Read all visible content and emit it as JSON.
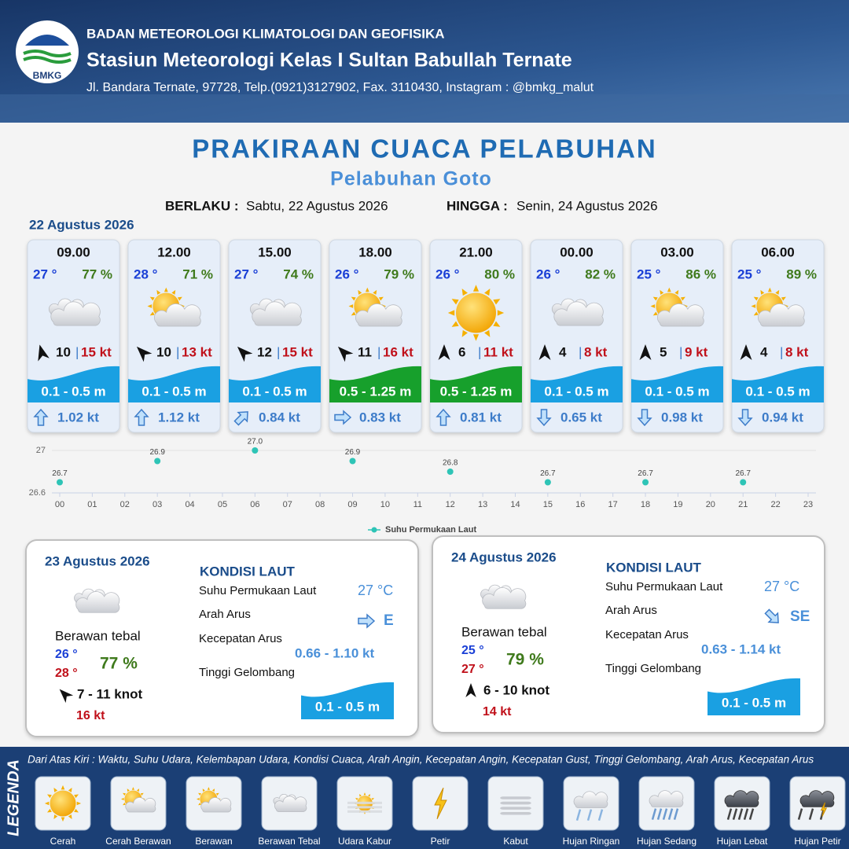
{
  "header": {
    "logo": "BMKG",
    "organization": "BADAN METEOROLOGI KLIMATOLOGI DAN GEOFISIKA",
    "station": "Stasiun Meteorologi Kelas I Sultan Babullah Ternate",
    "address": "Jl. Bandara Ternate, 97728, Telp.(0921)3127902, Fax. 3110430, Instagram : @bmkg_malut"
  },
  "title": "PRAKIRAAN CUACA PELABUHAN",
  "subtitle": "Pelabuhan Goto",
  "validity": {
    "from_label": "BERLAKU :",
    "from": "Sabtu, 22 Agustus 2026",
    "to_label": "HINGGA :",
    "to": "Senin, 24 Agustus 2026"
  },
  "day1": {
    "date": "22 Agustus 2026",
    "cards": [
      {
        "time": "09.00",
        "temp": "27 °",
        "humidity": "77 %",
        "wind_speed": "10",
        "gust": "15 kt",
        "wave": "0.1 - 0.5 m",
        "current_speed": "1.02 kt"
      },
      {
        "time": "12.00",
        "temp": "28 °",
        "humidity": "71 %",
        "wind_speed": "10",
        "gust": "13 kt",
        "wave": "0.1 - 0.5 m",
        "current_speed": "1.12 kt"
      },
      {
        "time": "15.00",
        "temp": "27 °",
        "humidity": "74 %",
        "wind_speed": "12",
        "gust": "15 kt",
        "wave": "0.1 - 0.5 m",
        "current_speed": "0.84 kt"
      },
      {
        "time": "18.00",
        "temp": "26 °",
        "humidity": "79 %",
        "wind_speed": "11",
        "gust": "16 kt",
        "wave": "0.5 - 1.25 m",
        "current_speed": "0.83 kt"
      },
      {
        "time": "21.00",
        "temp": "26 °",
        "humidity": "80 %",
        "wind_speed": "6",
        "gust": "11 kt",
        "wave": "0.5 - 1.25 m",
        "current_speed": "0.81 kt"
      },
      {
        "time": "00.00",
        "temp": "26 °",
        "humidity": "82 %",
        "wind_speed": "4",
        "gust": "8 kt",
        "wave": "0.1 - 0.5 m",
        "current_speed": "0.65 kt"
      },
      {
        "time": "03.00",
        "temp": "25 °",
        "humidity": "86 %",
        "wind_speed": "5",
        "gust": "9 kt",
        "wave": "0.1 - 0.5 m",
        "current_speed": "0.98 kt"
      },
      {
        "time": "06.00",
        "temp": "25 °",
        "humidity": "89 %",
        "wind_speed": "4",
        "gust": "8 kt",
        "wave": "0.1 - 0.5 m",
        "current_speed": "0.94 kt"
      }
    ]
  },
  "chart_data": {
    "type": "scatter",
    "series": [
      {
        "name": "Suhu Permukaan Laut",
        "color": "#2ec4b6",
        "x": [
          0,
          3,
          6,
          9,
          12,
          15,
          18,
          21
        ],
        "values": [
          26.7,
          26.9,
          27.0,
          26.9,
          26.8,
          26.7,
          26.7,
          26.7
        ],
        "value_labels": [
          "26.7",
          "26.9",
          "27.0",
          "26.9",
          "26.8",
          "26.7",
          "26.7",
          "26.7"
        ]
      }
    ],
    "xlim": [
      0,
      23
    ],
    "xticks": [
      {
        "value": 0,
        "label": "00"
      },
      {
        "value": 1,
        "label": "01"
      },
      {
        "value": 2,
        "label": "02"
      },
      {
        "value": 3,
        "label": "03"
      },
      {
        "value": 4,
        "label": "04"
      },
      {
        "value": 5,
        "label": "05"
      },
      {
        "value": 6,
        "label": "06"
      },
      {
        "value": 7,
        "label": "07"
      },
      {
        "value": 8,
        "label": "08"
      },
      {
        "value": 9,
        "label": "09"
      },
      10,
      11,
      12,
      13,
      14,
      15,
      16,
      17,
      18,
      19,
      20,
      21,
      22,
      23
    ],
    "ylim": [
      26.6,
      27.0
    ],
    "yticks": [
      26.6,
      27
    ],
    "grid": true
  },
  "days": [
    {
      "date": "23 Agustus 2026",
      "weather": "Berawan tebal",
      "temp_min": "26 °",
      "temp_max": "28 °",
      "humidity": "77 %",
      "wind": "7  - 11 knot",
      "gust": "16 kt",
      "sea": {
        "heading": "KONDISI LAUT",
        "sst_label": "Suhu Permukaan Laut",
        "sst": "27 °C",
        "current_dir_label": "Arah Arus",
        "current_dir": "E",
        "current_speed_label": "Kecepatan Arus",
        "current_speed": "0.66  - 1.10 kt",
        "wave_label": "Tinggi Gelombang",
        "wave": "0.1 - 0.5 m"
      }
    },
    {
      "date": "24 Agustus 2026",
      "weather": "Berawan tebal",
      "temp_min": "25 °",
      "temp_max": "27 °",
      "humidity": "79 %",
      "wind": "6  - 10 knot",
      "gust": "14 kt",
      "sea": {
        "heading": "KONDISI LAUT",
        "sst_label": "Suhu Permukaan Laut",
        "sst": "27 °C",
        "current_dir_label": "Arah Arus",
        "current_dir": "SE",
        "current_speed_label": "Kecepatan Arus",
        "current_speed": "0.63  - 1.14 kt",
        "wave_label": "Tinggi Gelombang",
        "wave": "0.1 - 0.5 m"
      }
    }
  ],
  "legend": {
    "heading": "LEGENDA",
    "description": "Dari Atas Kiri : Waktu, Suhu Udara, Kelembapan Udara, Kondisi Cuaca, Arah Angin, Kecepatan Angin, Kecepatan Gust, Tinggi Gelombang, Arah Arus, Kecepatan Arus",
    "items": [
      "Cerah",
      "Cerah Berawan",
      "Berawan",
      "Berawan Tebal",
      "Udara Kabur",
      "Petir",
      "Kabut",
      "Hujan Ringan",
      "Hujan Sedang",
      "Hujan Lebat",
      "Hujan Petir"
    ]
  }
}
